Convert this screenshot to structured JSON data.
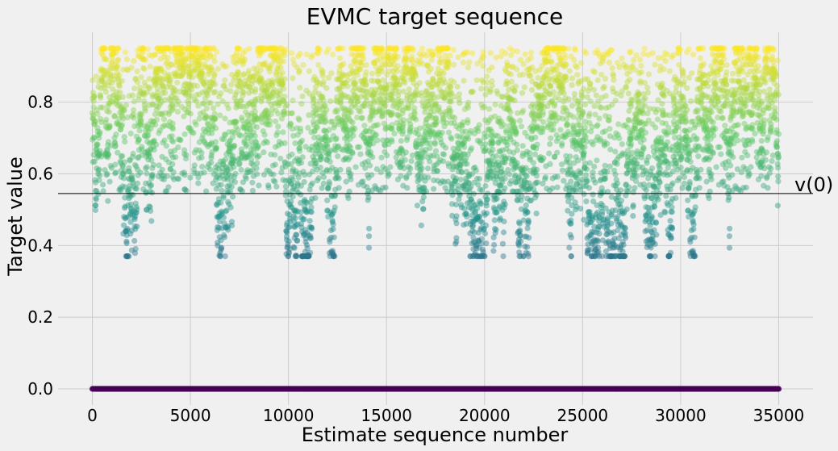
{
  "chart_data": {
    "type": "scatter",
    "title": "EVMC target sequence",
    "xlabel": "Estimate sequence number",
    "ylabel": "Target value",
    "xlim": [
      -1750,
      36750
    ],
    "ylim": [
      -0.045,
      0.995
    ],
    "x_ticks": [
      0,
      5000,
      10000,
      15000,
      20000,
      25000,
      30000,
      35000
    ],
    "x_tick_labels": [
      "0",
      "5000",
      "10000",
      "15000",
      "20000",
      "25000",
      "30000",
      "35000"
    ],
    "y_ticks": [
      0.0,
      0.2,
      0.4,
      0.6,
      0.8
    ],
    "y_tick_labels": [
      "0.0",
      "0.2",
      "0.4",
      "0.6",
      "0.8"
    ],
    "grid": true,
    "colormap": "viridis",
    "point_alpha": 0.45,
    "reference_line": {
      "y": 0.545,
      "label": "v(0)"
    },
    "series": [
      {
        "zero_targets": {
          "x_range": [
            0,
            35000
          ],
          "y": 0.0
        },
        "positive_targets": {
          "x_range": [
            0,
            35000
          ],
          "y_range": [
            0.37,
            0.95
          ]
        }
      }
    ]
  },
  "colors": {
    "background": "#f0f0f0",
    "grid": "#cbcbcb",
    "reference_line": "#000000",
    "viridis": [
      "#440154",
      "#3b528b",
      "#21918c",
      "#5ec962",
      "#fde725"
    ]
  }
}
